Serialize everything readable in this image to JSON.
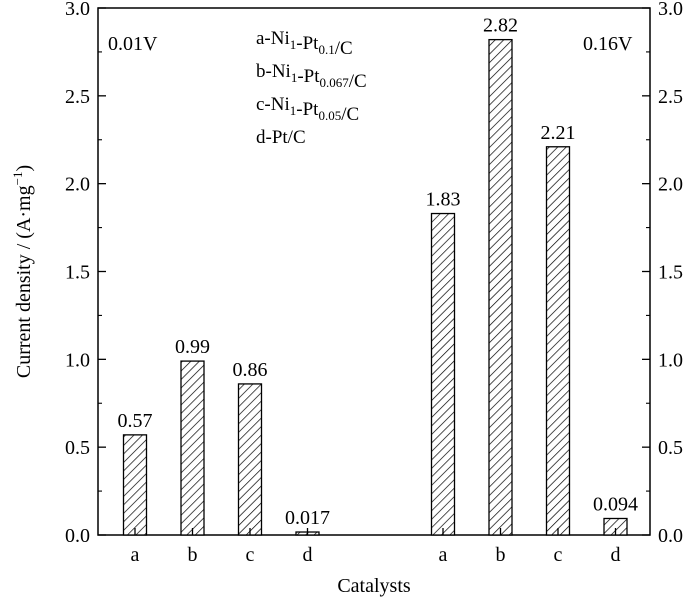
{
  "chart_data": {
    "type": "bar",
    "xlabel": "Catalysts",
    "ylabel": "Current density / (A·mg",
    "ylabel_sup": "−1",
    "ylabel_close": ")",
    "ylim": [
      0,
      3.0
    ],
    "yticks": [
      0.0,
      0.5,
      1.0,
      1.5,
      2.0,
      2.5,
      3.0
    ],
    "ytick_labels": [
      "0.0",
      "0.5",
      "1.0",
      "1.5",
      "2.0",
      "2.5",
      "3.0"
    ],
    "grid": false,
    "bar_pattern": "diagonal-hatch",
    "groups": [
      {
        "voltage_label": "0.01V",
        "categories": [
          "a",
          "b",
          "c",
          "d"
        ],
        "values": [
          0.57,
          0.99,
          0.86,
          0.017
        ],
        "labels": [
          "0.57",
          "0.99",
          "0.86",
          "0.017"
        ]
      },
      {
        "voltage_label": "0.16V",
        "categories": [
          "a",
          "b",
          "c",
          "d"
        ],
        "values": [
          1.83,
          2.82,
          2.21,
          0.094
        ],
        "labels": [
          "1.83",
          "2.82",
          "2.21",
          "0.094"
        ]
      }
    ],
    "legend_position": "top-center",
    "legend": [
      {
        "text": "a-Ni",
        "sub1": "1",
        "mid": "-Pt",
        "sub2": "0.1",
        "tail": "/C"
      },
      {
        "text": "b-Ni",
        "sub1": "1",
        "mid": "-Pt",
        "sub2": "0.067",
        "tail": "/C"
      },
      {
        "text": "c-Ni",
        "sub1": "1",
        "mid": "-Pt",
        "sub2": "0.05",
        "tail": "/C"
      },
      {
        "text": "d-Pt/C",
        "sub1": "",
        "mid": "",
        "sub2": "",
        "tail": ""
      }
    ]
  }
}
